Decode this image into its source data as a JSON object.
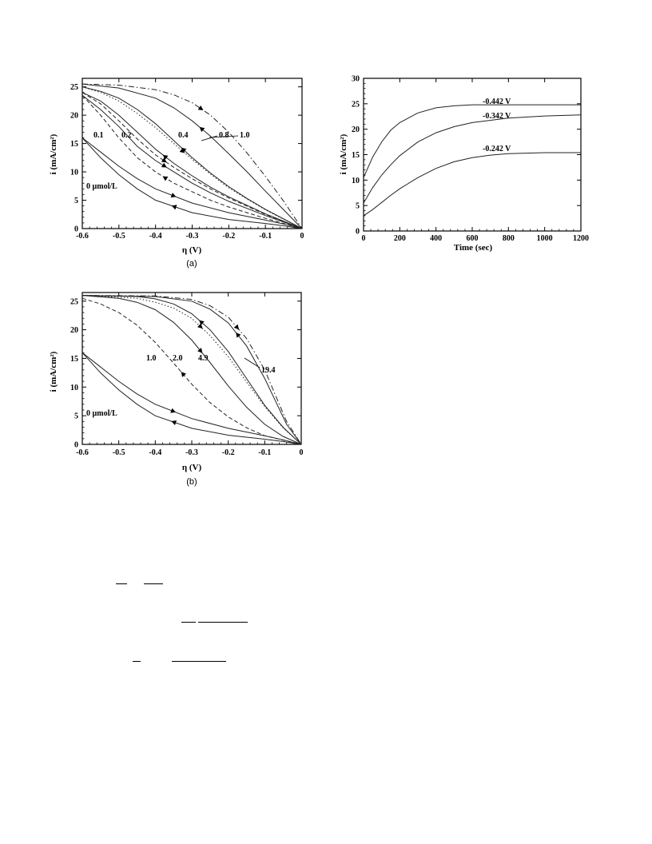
{
  "chart_data": [
    {
      "id": "a",
      "type": "line",
      "caption": "(a)",
      "xlabel": "η (V)",
      "ylabel": "i (mA/cm²)",
      "xlim": [
        -0.6,
        0
      ],
      "ylim": [
        0,
        26.5
      ],
      "x_ticks": [
        "-0.6",
        "-0.5",
        "-0.4",
        "-0.3",
        "-0.2",
        "-0.1",
        "0"
      ],
      "y_ticks": [
        "0",
        "5",
        "10",
        "15",
        "20",
        "25"
      ],
      "annotations": [
        "0.1",
        "0.2",
        "0.4",
        "0.8",
        "1.0",
        "0 µmol/L"
      ],
      "series": [
        {
          "name": "0 µmol/L",
          "dash": "solid",
          "x": [
            -0.6,
            -0.55,
            -0.5,
            -0.45,
            -0.4,
            -0.3,
            -0.2,
            -0.1,
            -0.05,
            0
          ],
          "y": [
            16,
            12.5,
            9.5,
            7,
            5,
            2.8,
            1.6,
            0.9,
            0.5,
            0
          ]
        },
        {
          "name": "0 µmol/L",
          "dash": "solid",
          "x": [
            -0.6,
            -0.55,
            -0.5,
            -0.45,
            -0.4,
            -0.3,
            -0.2,
            -0.1,
            -0.05,
            0
          ],
          "y": [
            16,
            13.5,
            11,
            8.8,
            7,
            4.5,
            2.8,
            1.5,
            0.8,
            0
          ]
        },
        {
          "name": "0.1",
          "dash": "dash",
          "x": [
            -0.6,
            -0.55,
            -0.5,
            -0.45,
            -0.4,
            -0.35,
            -0.3,
            -0.25,
            -0.2,
            -0.1,
            0
          ],
          "y": [
            23.5,
            20,
            16,
            12.5,
            10,
            8,
            6.5,
            5,
            3.8,
            1.8,
            0
          ]
        },
        {
          "name": "0.1",
          "dash": "solid",
          "x": [
            -0.6,
            -0.55,
            -0.5,
            -0.45,
            -0.4,
            -0.35,
            -0.3,
            -0.25,
            -0.2,
            -0.1,
            0
          ],
          "y": [
            23.5,
            21,
            18,
            14.5,
            12,
            10,
            8,
            6.3,
            4.8,
            2.3,
            0
          ]
        },
        {
          "name": "0.2",
          "dash": "solid",
          "x": [
            -0.6,
            -0.55,
            -0.5,
            -0.45,
            -0.4,
            -0.35,
            -0.3,
            -0.25,
            -0.2,
            -0.1,
            0
          ],
          "y": [
            24,
            22.5,
            20,
            17,
            14,
            11.5,
            9.3,
            7.3,
            5.6,
            2.6,
            0
          ]
        },
        {
          "name": "0.2",
          "dash": "dash",
          "x": [
            -0.6,
            -0.55,
            -0.5,
            -0.45,
            -0.4,
            -0.35,
            -0.3,
            -0.25,
            -0.2,
            -0.1,
            0
          ],
          "y": [
            24,
            22,
            19,
            15.8,
            13,
            10.8,
            8.8,
            7,
            5.4,
            2.5,
            0
          ]
        },
        {
          "name": "0.4",
          "dash": "solid",
          "x": [
            -0.6,
            -0.55,
            -0.5,
            -0.45,
            -0.4,
            -0.35,
            -0.3,
            -0.25,
            -0.2,
            -0.15,
            -0.1,
            0
          ],
          "y": [
            25,
            24.2,
            23,
            21,
            18.5,
            15.5,
            12.5,
            9.8,
            7.4,
            5.3,
            3.4,
            0
          ]
        },
        {
          "name": "0.4",
          "dash": "dot",
          "x": [
            -0.6,
            -0.55,
            -0.5,
            -0.45,
            -0.4,
            -0.35,
            -0.3,
            -0.25,
            -0.2,
            -0.15,
            -0.1,
            0
          ],
          "y": [
            25,
            24,
            22.5,
            20.3,
            17.8,
            15,
            12.2,
            9.6,
            7.2,
            5.2,
            3.3,
            0
          ]
        },
        {
          "name": "0.8",
          "dash": "solid",
          "x": [
            -0.6,
            -0.5,
            -0.4,
            -0.35,
            -0.3,
            -0.25,
            -0.2,
            -0.15,
            -0.1,
            -0.05,
            0
          ],
          "y": [
            25.5,
            24.8,
            23,
            21.3,
            19,
            16.3,
            13.2,
            10,
            6.6,
            3.3,
            0
          ]
        },
        {
          "name": "1.0",
          "dash": "dashdot",
          "x": [
            -0.6,
            -0.5,
            -0.4,
            -0.35,
            -0.3,
            -0.25,
            -0.2,
            -0.15,
            -0.1,
            -0.05,
            0
          ],
          "y": [
            25.5,
            25.3,
            24.5,
            23.6,
            22.2,
            20,
            17,
            13.3,
            9.2,
            4.8,
            0
          ]
        }
      ]
    },
    {
      "id": "time",
      "type": "line",
      "caption": "",
      "xlabel": "Time (sec)",
      "ylabel": "i (mA/cm²)",
      "xlim": [
        0,
        1200
      ],
      "ylim": [
        0,
        30
      ],
      "x_ticks": [
        "0",
        "200",
        "400",
        "600",
        "800",
        "1000",
        "1200"
      ],
      "y_ticks": [
        "0",
        "5",
        "10",
        "15",
        "20",
        "25",
        "30"
      ],
      "annotations": [
        "-0.442 V",
        "-0.342 V",
        "-0.242 V"
      ],
      "series": [
        {
          "name": "-0.442 V",
          "dash": "solid",
          "x": [
            0,
            50,
            100,
            150,
            200,
            300,
            400,
            500,
            600,
            800,
            1000,
            1200
          ],
          "y": [
            10.5,
            14.5,
            17.5,
            19.8,
            21.3,
            23.2,
            24.2,
            24.6,
            24.8,
            24.8,
            24.8,
            24.8
          ]
        },
        {
          "name": "-0.342 V",
          "dash": "solid",
          "x": [
            0,
            50,
            100,
            150,
            200,
            300,
            400,
            500,
            600,
            800,
            1000,
            1200
          ],
          "y": [
            5.5,
            8.5,
            11,
            13,
            14.8,
            17.5,
            19.3,
            20.5,
            21.3,
            22.2,
            22.6,
            22.8
          ]
        },
        {
          "name": "-0.242 V",
          "dash": "solid",
          "x": [
            0,
            50,
            100,
            150,
            200,
            300,
            400,
            500,
            600,
            700,
            800,
            1000,
            1200
          ],
          "y": [
            3,
            4.2,
            5.6,
            7,
            8.3,
            10.5,
            12.3,
            13.6,
            14.4,
            14.9,
            15.2,
            15.4,
            15.4
          ]
        }
      ]
    },
    {
      "id": "b",
      "type": "line",
      "caption": "(b)",
      "xlabel": "η (V)",
      "ylabel": "i (mA/cm²)",
      "xlim": [
        -0.6,
        0
      ],
      "ylim": [
        0,
        26.5
      ],
      "x_ticks": [
        "-0.6",
        "-0.5",
        "-0.4",
        "-0.3",
        "-0.2",
        "-0.1",
        "0"
      ],
      "y_ticks": [
        "0",
        "5",
        "10",
        "15",
        "20",
        "25"
      ],
      "annotations": [
        "1.0",
        "2.0",
        "4.9",
        "19.4",
        "0 µmol/L"
      ],
      "series": [
        {
          "name": "0 µmol/L",
          "dash": "solid",
          "x": [
            -0.6,
            -0.55,
            -0.5,
            -0.45,
            -0.4,
            -0.3,
            -0.2,
            -0.1,
            -0.05,
            0
          ],
          "y": [
            16,
            12.5,
            9.5,
            7,
            5,
            2.8,
            1.6,
            0.9,
            0.5,
            0
          ]
        },
        {
          "name": "0 µmol/L",
          "dash": "solid",
          "x": [
            -0.6,
            -0.55,
            -0.5,
            -0.45,
            -0.4,
            -0.3,
            -0.2,
            -0.1,
            -0.05,
            0
          ],
          "y": [
            16,
            13.5,
            11,
            8.8,
            7,
            4.5,
            2.8,
            1.5,
            0.8,
            0
          ]
        },
        {
          "name": "1.0",
          "dash": "dash",
          "x": [
            -0.6,
            -0.55,
            -0.5,
            -0.45,
            -0.4,
            -0.35,
            -0.3,
            -0.25,
            -0.2,
            -0.15,
            -0.1,
            0
          ],
          "y": [
            25.5,
            24.5,
            23,
            20.8,
            17.8,
            14.2,
            10.5,
            7.3,
            4.8,
            2.9,
            1.5,
            0
          ]
        },
        {
          "name": "2.0",
          "dash": "solid",
          "x": [
            -0.6,
            -0.5,
            -0.45,
            -0.4,
            -0.35,
            -0.3,
            -0.25,
            -0.2,
            -0.15,
            -0.1,
            -0.05,
            0
          ],
          "y": [
            26,
            25.5,
            24.8,
            23.5,
            21.3,
            18.2,
            14.3,
            10.2,
            6.5,
            3.5,
            1.4,
            0
          ]
        },
        {
          "name": "4.9",
          "dash": "solid",
          "x": [
            -0.6,
            -0.45,
            -0.4,
            -0.35,
            -0.3,
            -0.25,
            -0.2,
            -0.15,
            -0.1,
            -0.05,
            0
          ],
          "y": [
            26,
            25.8,
            25.4,
            24.5,
            22.8,
            20,
            16.2,
            11.5,
            6.8,
            3,
            0
          ]
        },
        {
          "name": "4.9",
          "dash": "dot",
          "x": [
            -0.6,
            -0.45,
            -0.4,
            -0.35,
            -0.3,
            -0.25,
            -0.2,
            -0.15,
            -0.1,
            -0.05,
            0
          ],
          "y": [
            26,
            25.5,
            24.8,
            23.8,
            22,
            19,
            15.3,
            10.9,
            6.6,
            2.9,
            0
          ]
        },
        {
          "name": "19.4",
          "dash": "solid",
          "x": [
            -0.6,
            -0.4,
            -0.3,
            -0.25,
            -0.2,
            -0.15,
            -0.1,
            -0.07,
            -0.04,
            0
          ],
          "y": [
            26,
            25.8,
            25,
            23.6,
            21.2,
            17.2,
            11.5,
            7.5,
            3.5,
            0
          ]
        },
        {
          "name": "19.4",
          "dash": "dashdot",
          "x": [
            -0.6,
            -0.4,
            -0.3,
            -0.25,
            -0.2,
            -0.15,
            -0.1,
            -0.07,
            -0.04,
            0
          ],
          "y": [
            26,
            25.9,
            25.3,
            24.2,
            22.2,
            18.5,
            13,
            8.5,
            4,
            0
          ]
        }
      ]
    }
  ]
}
